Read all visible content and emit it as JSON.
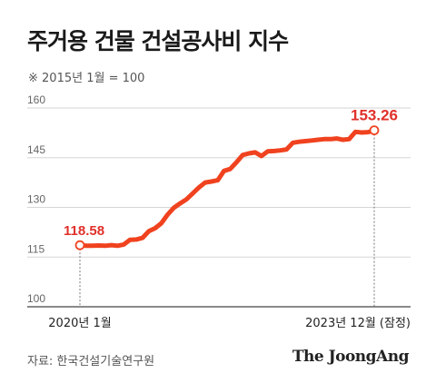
{
  "title": "주거용 건물 건설공사비 지수",
  "note": "※ 2015년 1월 = 100",
  "source": "자료: 한국건설기술연구원",
  "brand": "The JoongAng",
  "chart_data": {
    "type": "line",
    "title": "주거용 건물 건설공사비 지수",
    "ylim": [
      100,
      160
    ],
    "yticks": [
      "160",
      "145",
      "130",
      "115",
      "100"
    ],
    "yticks_values": [
      160,
      145,
      130,
      115,
      100
    ],
    "x_start_label": "2020년 1월",
    "x_end_label": "2023년 12월 (잠정)",
    "start_label": "118.58",
    "end_label": "153.26",
    "line_color": "#f0421f",
    "label_color": "#e0302a",
    "grid": true,
    "series": [
      {
        "values": [
          118.58,
          118.4,
          118.4,
          118.5,
          118.4,
          118.6,
          118.4,
          118.8,
          120.2,
          120.3,
          120.8,
          122.8,
          123.7,
          125.2,
          127.8,
          129.9,
          131.2,
          132.4,
          134.2,
          136.0,
          137.5,
          137.8,
          138.2,
          141.0,
          141.6,
          143.6,
          145.8,
          146.3,
          146.6,
          145.5,
          146.9,
          147.0,
          147.2,
          147.5,
          149.5,
          149.8,
          150.0,
          150.2,
          150.4,
          150.6,
          150.6,
          150.8,
          150.4,
          150.6,
          152.8,
          152.6,
          152.7,
          153.26
        ]
      }
    ]
  }
}
